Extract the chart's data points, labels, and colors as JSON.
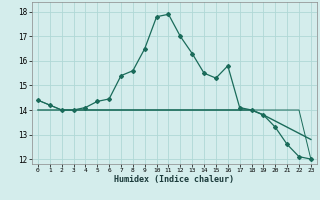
{
  "xlabel": "Humidex (Indice chaleur)",
  "x_values": [
    0,
    1,
    2,
    3,
    4,
    5,
    6,
    7,
    8,
    9,
    10,
    11,
    12,
    13,
    14,
    15,
    16,
    17,
    18,
    19,
    20,
    21,
    22,
    23
  ],
  "line1_y": [
    14.4,
    14.2,
    14.0,
    14.0,
    14.1,
    14.35,
    14.45,
    15.4,
    15.6,
    16.5,
    17.8,
    17.9,
    17.0,
    16.3,
    15.5,
    15.3,
    15.8,
    14.1,
    14.0,
    13.8,
    13.3,
    12.6,
    12.1,
    12.0
  ],
  "line2_y": [
    14.0,
    14.0,
    14.0,
    14.0,
    14.0,
    14.0,
    14.0,
    14.0,
    14.0,
    14.0,
    14.0,
    14.0,
    14.0,
    14.0,
    14.0,
    14.0,
    14.0,
    14.0,
    14.0,
    13.8,
    13.55,
    13.3,
    13.05,
    12.8
  ],
  "line3_y": [
    14.4,
    14.2,
    14.0,
    14.0,
    14.0,
    14.0,
    14.0,
    14.0,
    14.0,
    14.0,
    14.0,
    14.0,
    14.0,
    14.0,
    14.0,
    14.0,
    14.0,
    14.0,
    14.0,
    14.0,
    14.0,
    14.0,
    14.0,
    12.0
  ],
  "line_color": "#1a6b5a",
  "bg_color": "#d4edec",
  "grid_color": "#b0d8d6",
  "ylim": [
    11.8,
    18.4
  ],
  "xlim": [
    -0.5,
    23.5
  ],
  "yticks": [
    12,
    13,
    14,
    15,
    16,
    17,
    18
  ],
  "xticks": [
    0,
    1,
    2,
    3,
    4,
    5,
    6,
    7,
    8,
    9,
    10,
    11,
    12,
    13,
    14,
    15,
    16,
    17,
    18,
    19,
    20,
    21,
    22,
    23
  ]
}
